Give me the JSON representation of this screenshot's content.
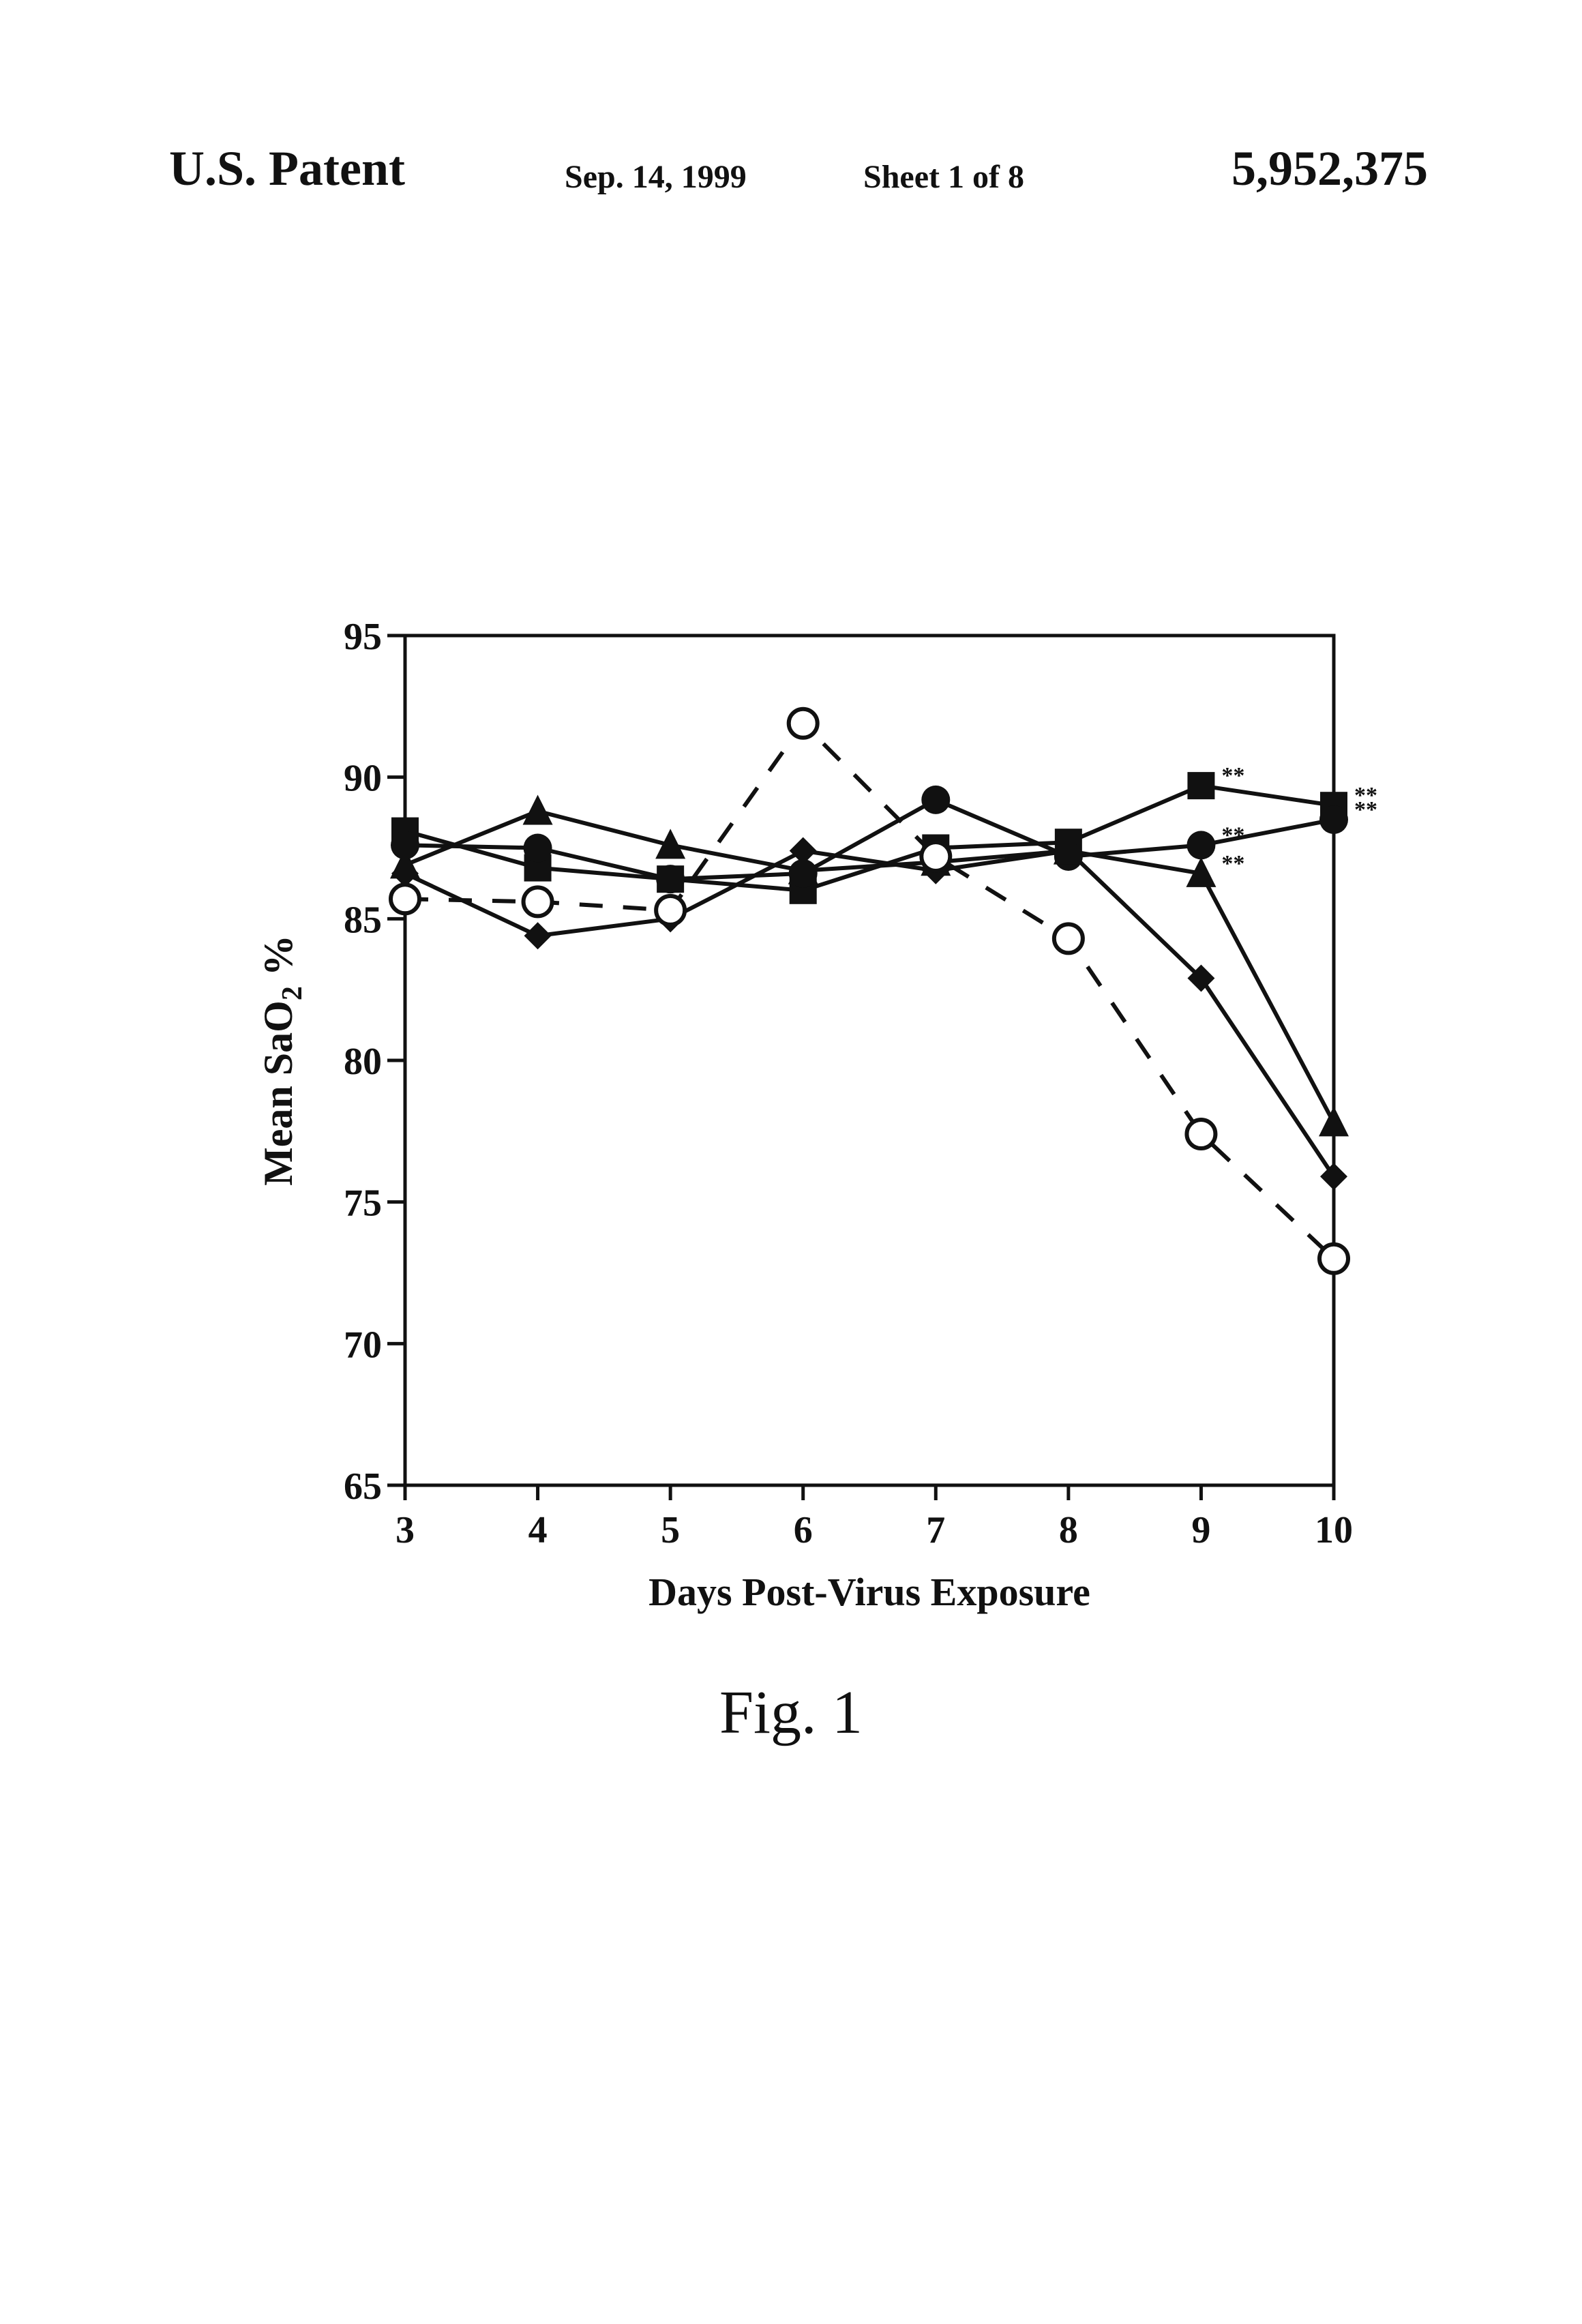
{
  "header": {
    "left": "U.S. Patent",
    "date": "Sep. 14, 1999",
    "sheet": "Sheet 1 of 8",
    "patent_number": "5,952,375"
  },
  "figure_caption": "Fig. 1",
  "chart_data": {
    "type": "line",
    "title": "",
    "xlabel": "Days Post-Virus Exposure",
    "ylabel": "Mean SaO2 %",
    "xlim": [
      3,
      10
    ],
    "ylim": [
      65,
      95
    ],
    "x": [
      3,
      4,
      5,
      6,
      7,
      8,
      9,
      10
    ],
    "y_ticks": [
      65,
      70,
      75,
      80,
      85,
      90,
      95
    ],
    "grid": false,
    "series": [
      {
        "marker": "square",
        "line": "solid",
        "values": [
          88.1,
          86.8,
          86.4,
          86.0,
          87.5,
          87.7,
          89.7,
          89.0
        ],
        "annotations": {
          "9": "**",
          "10": "**"
        }
      },
      {
        "marker": "circle",
        "line": "solid",
        "values": [
          87.6,
          87.5,
          86.4,
          86.6,
          89.2,
          87.2,
          87.6,
          88.5
        ],
        "annotations": {
          "9": "**",
          "10": "**"
        }
      },
      {
        "marker": "triangle",
        "line": "solid",
        "values": [
          86.9,
          88.8,
          87.6,
          86.7,
          87.0,
          87.4,
          86.6,
          77.8
        ],
        "annotations": {
          "9": "**"
        }
      },
      {
        "marker": "diamond",
        "line": "solid",
        "values": [
          86.6,
          84.4,
          85.0,
          87.4,
          86.7,
          87.4,
          82.9,
          75.9
        ],
        "annotations": {}
      },
      {
        "marker": "open-circle",
        "line": "dashed",
        "values": [
          85.7,
          85.6,
          85.3,
          91.9,
          87.2,
          84.3,
          77.4,
          73.0
        ],
        "annotations": {}
      }
    ]
  }
}
